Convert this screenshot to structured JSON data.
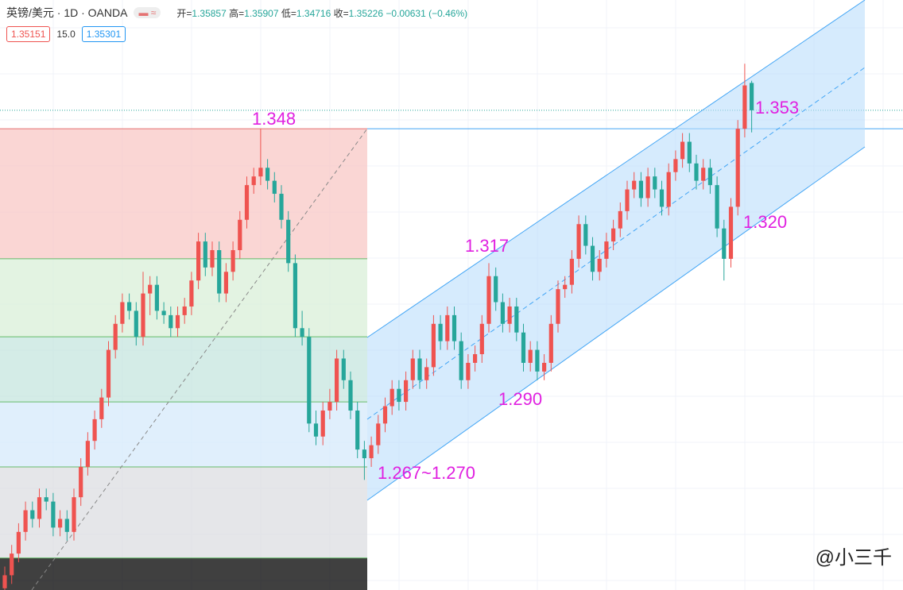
{
  "header": {
    "symbol": "英镑/美元 · 1D · OANDA",
    "fields": [
      {
        "label": "开=",
        "value": "1.35857"
      },
      {
        "label": "高=",
        "value": "1.35907"
      },
      {
        "label": "低=",
        "value": "1.34716"
      },
      {
        "label": "收=",
        "value": "1.35226"
      }
    ],
    "change": "−0.00631 (−0.46%)",
    "bid": "1.35151",
    "spread": "15.0",
    "ask": "1.35301"
  },
  "watermark": "@小三千",
  "chart_data": {
    "type": "candlestick",
    "ylim": [
      1.2416,
      1.3777
    ],
    "up_color": "#ef5350",
    "down_color": "#26a69a",
    "annotations": [
      "1.348",
      "1.353",
      "1.320",
      "1.317",
      "1.290",
      "1.267~1.270"
    ],
    "fib_levels": [
      1.348,
      1.318,
      1.3,
      1.285,
      1.27,
      1.249
    ],
    "current_price": 1.35226,
    "ohlc": [
      [
        1.242,
        1.247,
        1.24,
        1.245
      ],
      [
        1.245,
        1.252,
        1.243,
        1.25
      ],
      [
        1.25,
        1.257,
        1.248,
        1.255
      ],
      [
        1.255,
        1.262,
        1.253,
        1.26
      ],
      [
        1.26,
        1.262,
        1.256,
        1.258
      ],
      [
        1.258,
        1.265,
        1.256,
        1.263
      ],
      [
        1.263,
        1.265,
        1.26,
        1.262
      ],
      [
        1.262,
        1.264,
        1.254,
        1.256
      ],
      [
        1.256,
        1.26,
        1.254,
        1.258
      ],
      [
        1.258,
        1.26,
        1.253,
        1.255
      ],
      [
        1.255,
        1.265,
        1.253,
        1.263
      ],
      [
        1.263,
        1.272,
        1.261,
        1.27
      ],
      [
        1.27,
        1.278,
        1.268,
        1.276
      ],
      [
        1.276,
        1.283,
        1.274,
        1.281
      ],
      [
        1.281,
        1.288,
        1.279,
        1.286
      ],
      [
        1.286,
        1.299,
        1.284,
        1.297
      ],
      [
        1.297,
        1.305,
        1.295,
        1.303
      ],
      [
        1.303,
        1.31,
        1.301,
        1.308
      ],
      [
        1.308,
        1.31,
        1.304,
        1.306
      ],
      [
        1.306,
        1.308,
        1.298,
        1.3
      ],
      [
        1.3,
        1.315,
        1.298,
        1.31
      ],
      [
        1.31,
        1.314,
        1.305,
        1.312
      ],
      [
        1.312,
        1.314,
        1.304,
        1.306
      ],
      [
        1.306,
        1.308,
        1.303,
        1.305
      ],
      [
        1.305,
        1.307,
        1.3,
        1.302
      ],
      [
        1.302,
        1.307,
        1.3,
        1.305
      ],
      [
        1.305,
        1.309,
        1.303,
        1.307
      ],
      [
        1.307,
        1.315,
        1.305,
        1.313
      ],
      [
        1.313,
        1.324,
        1.311,
        1.322
      ],
      [
        1.322,
        1.324,
        1.314,
        1.316
      ],
      [
        1.316,
        1.322,
        1.314,
        1.32
      ],
      [
        1.32,
        1.322,
        1.308,
        1.31
      ],
      [
        1.31,
        1.317,
        1.308,
        1.315
      ],
      [
        1.315,
        1.322,
        1.313,
        1.32
      ],
      [
        1.32,
        1.329,
        1.318,
        1.327
      ],
      [
        1.327,
        1.337,
        1.325,
        1.335
      ],
      [
        1.335,
        1.339,
        1.333,
        1.337
      ],
      [
        1.337,
        1.348,
        1.335,
        1.339
      ],
      [
        1.339,
        1.341,
        1.334,
        1.336
      ],
      [
        1.336,
        1.338,
        1.331,
        1.333
      ],
      [
        1.333,
        1.335,
        1.325,
        1.327
      ],
      [
        1.327,
        1.329,
        1.315,
        1.317
      ],
      [
        1.317,
        1.319,
        1.3,
        1.302
      ],
      [
        1.302,
        1.306,
        1.298,
        1.3
      ],
      [
        1.3,
        1.302,
        1.278,
        1.28
      ],
      [
        1.28,
        1.283,
        1.275,
        1.277
      ],
      [
        1.277,
        1.285,
        1.275,
        1.283
      ],
      [
        1.283,
        1.288,
        1.281,
        1.285
      ],
      [
        1.285,
        1.297,
        1.283,
        1.295
      ],
      [
        1.295,
        1.297,
        1.288,
        1.29
      ],
      [
        1.29,
        1.292,
        1.281,
        1.283
      ],
      [
        1.283,
        1.285,
        1.272,
        1.274
      ],
      [
        1.274,
        1.276,
        1.267,
        1.272
      ],
      [
        1.272,
        1.277,
        1.27,
        1.275
      ],
      [
        1.275,
        1.282,
        1.273,
        1.28
      ],
      [
        1.28,
        1.286,
        1.278,
        1.284
      ],
      [
        1.284,
        1.29,
        1.282,
        1.288
      ],
      [
        1.288,
        1.29,
        1.283,
        1.285
      ],
      [
        1.285,
        1.292,
        1.283,
        1.29
      ],
      [
        1.29,
        1.297,
        1.288,
        1.295
      ],
      [
        1.295,
        1.297,
        1.288,
        1.29
      ],
      [
        1.29,
        1.295,
        1.288,
        1.293
      ],
      [
        1.293,
        1.305,
        1.291,
        1.303
      ],
      [
        1.303,
        1.305,
        1.297,
        1.299
      ],
      [
        1.299,
        1.307,
        1.297,
        1.305
      ],
      [
        1.305,
        1.307,
        1.297,
        1.299
      ],
      [
        1.299,
        1.301,
        1.288,
        1.29
      ],
      [
        1.29,
        1.296,
        1.288,
        1.294
      ],
      [
        1.294,
        1.298,
        1.292,
        1.296
      ],
      [
        1.296,
        1.305,
        1.294,
        1.303
      ],
      [
        1.303,
        1.317,
        1.301,
        1.314
      ],
      [
        1.314,
        1.316,
        1.306,
        1.308
      ],
      [
        1.308,
        1.31,
        1.301,
        1.303
      ],
      [
        1.303,
        1.309,
        1.301,
        1.307
      ],
      [
        1.307,
        1.309,
        1.299,
        1.301
      ],
      [
        1.301,
        1.303,
        1.292,
        1.294
      ],
      [
        1.294,
        1.299,
        1.292,
        1.297
      ],
      [
        1.297,
        1.299,
        1.29,
        1.292
      ],
      [
        1.292,
        1.296,
        1.29,
        1.294
      ],
      [
        1.294,
        1.305,
        1.292,
        1.303
      ],
      [
        1.303,
        1.313,
        1.301,
        1.311
      ],
      [
        1.311,
        1.314,
        1.309,
        1.312
      ],
      [
        1.312,
        1.32,
        1.31,
        1.318
      ],
      [
        1.318,
        1.328,
        1.316,
        1.326
      ],
      [
        1.326,
        1.328,
        1.319,
        1.321
      ],
      [
        1.321,
        1.323,
        1.313,
        1.315
      ],
      [
        1.315,
        1.32,
        1.313,
        1.318
      ],
      [
        1.318,
        1.324,
        1.316,
        1.322
      ],
      [
        1.322,
        1.327,
        1.32,
        1.325
      ],
      [
        1.325,
        1.331,
        1.323,
        1.329
      ],
      [
        1.329,
        1.336,
        1.327,
        1.334
      ],
      [
        1.334,
        1.338,
        1.332,
        1.336
      ],
      [
        1.336,
        1.338,
        1.33,
        1.332
      ],
      [
        1.332,
        1.339,
        1.33,
        1.337
      ],
      [
        1.337,
        1.339,
        1.332,
        1.334
      ],
      [
        1.334,
        1.336,
        1.328,
        1.33
      ],
      [
        1.33,
        1.34,
        1.328,
        1.338
      ],
      [
        1.338,
        1.343,
        1.336,
        1.341
      ],
      [
        1.341,
        1.347,
        1.339,
        1.345
      ],
      [
        1.345,
        1.347,
        1.338,
        1.34
      ],
      [
        1.34,
        1.342,
        1.334,
        1.336
      ],
      [
        1.336,
        1.341,
        1.334,
        1.339
      ],
      [
        1.339,
        1.341,
        1.333,
        1.335
      ],
      [
        1.335,
        1.337,
        1.323,
        1.325
      ],
      [
        1.325,
        1.327,
        1.313,
        1.318
      ],
      [
        1.318,
        1.332,
        1.316,
        1.33
      ],
      [
        1.33,
        1.35,
        1.328,
        1.348
      ],
      [
        1.348,
        1.363,
        1.346,
        1.358
      ],
      [
        1.35857,
        1.35907,
        1.34716,
        1.35226
      ]
    ]
  }
}
